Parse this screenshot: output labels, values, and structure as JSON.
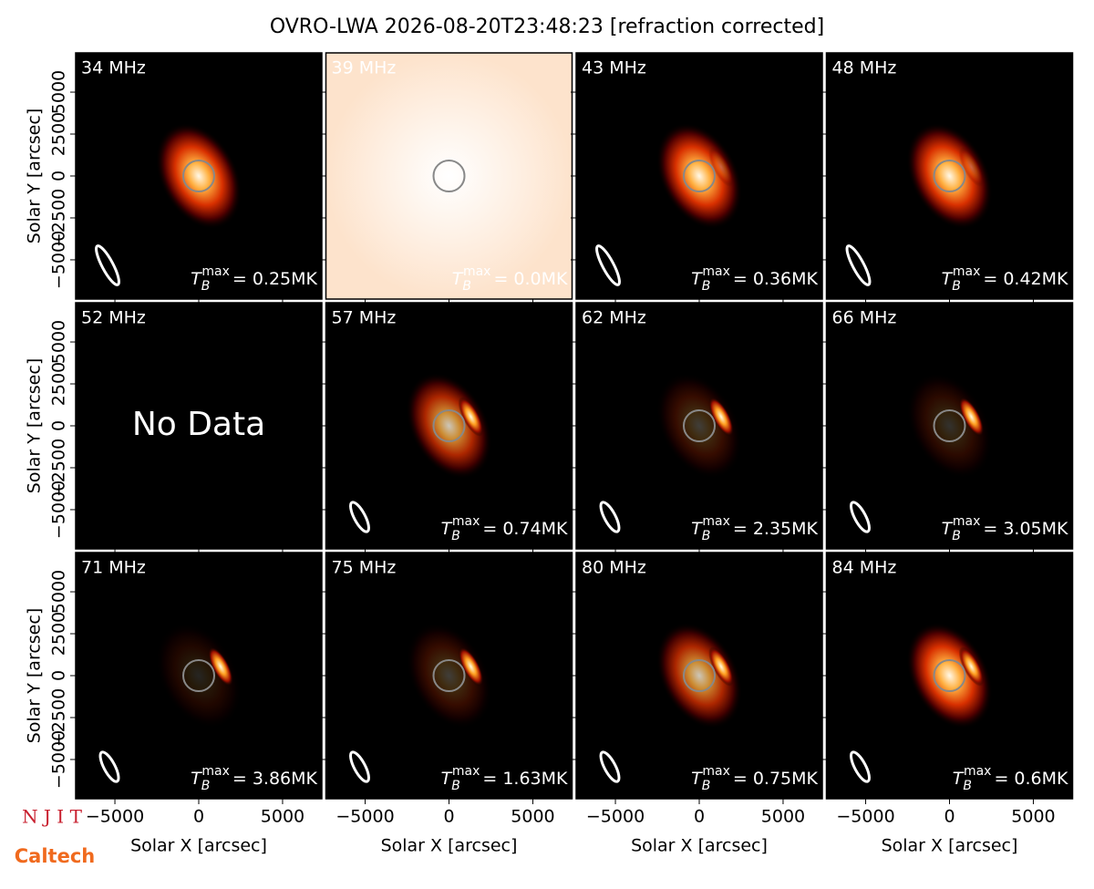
{
  "chart_data": {
    "type": "image",
    "title": "OVRO-LWA 2026-08-20T23:48:23 [refraction corrected]",
    "x_label": "Solar X [arcsec]",
    "y_label": "Solar Y [arcsec]",
    "xlim": [
      -7340,
      7340
    ],
    "ylim": [
      -7340,
      7340
    ],
    "xticks": [
      {
        "value": -5000,
        "label": "−5000"
      },
      0,
      5000
    ],
    "yticks": [
      {
        "value": -5000,
        "label": "−5000"
      },
      {
        "value": -2500,
        "label": "−2500"
      },
      0,
      2500,
      5000
    ],
    "tb_symbol": "T",
    "tb_sub": "B",
    "tb_sup": "max",
    "panels": [
      {
        "freq": "34 MHz",
        "tmax": 0.25,
        "tmax_label": "= 0.25MK"
      },
      {
        "freq": "39 MHz",
        "tmax": 0.0,
        "tmax_label": "= 0.0MK"
      },
      {
        "freq": "43 MHz",
        "tmax": 0.36,
        "tmax_label": "= 0.36MK"
      },
      {
        "freq": "48 MHz",
        "tmax": 0.42,
        "tmax_label": "= 0.42MK"
      },
      {
        "freq": "52 MHz",
        "note": "No Data"
      },
      {
        "freq": "57 MHz",
        "tmax": 0.74,
        "tmax_label": "= 0.74MK"
      },
      {
        "freq": "62 MHz",
        "tmax": 2.35,
        "tmax_label": "= 2.35MK"
      },
      {
        "freq": "66 MHz",
        "tmax": 3.05,
        "tmax_label": "= 3.05MK"
      },
      {
        "freq": "71 MHz",
        "tmax": 3.86,
        "tmax_label": "= 3.86MK"
      },
      {
        "freq": "75 MHz",
        "tmax": 1.63,
        "tmax_label": "= 1.63MK"
      },
      {
        "freq": "80 MHz",
        "tmax": 0.75,
        "tmax_label": "= 0.75MK"
      },
      {
        "freq": "84 MHz",
        "tmax": 0.6,
        "tmax_label": "= 0.6MK"
      }
    ],
    "logos": [
      "N J I T",
      "Caltech"
    ]
  }
}
